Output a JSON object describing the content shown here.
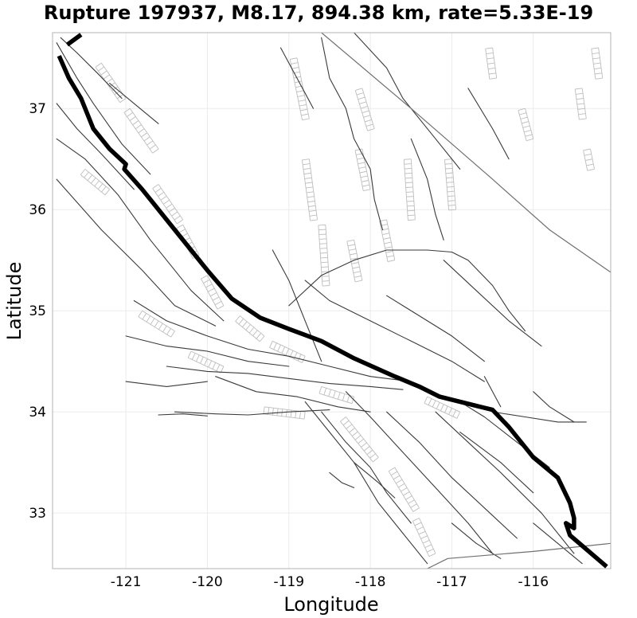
{
  "chart_data": {
    "type": "map-lines",
    "title": "Rupture 197937, M8.17, 894.38 km, rate=5.33E-19",
    "xlabel": "Longitude",
    "ylabel": "Latitude",
    "xlim": [
      -121.9,
      -115.05
    ],
    "ylim": [
      32.45,
      37.75
    ],
    "xticks": [
      {
        "value": -121,
        "label": "-121"
      },
      {
        "value": -120,
        "label": "-120"
      },
      {
        "value": -119,
        "label": "-119"
      },
      {
        "value": -118,
        "label": "-118"
      },
      {
        "value": -117,
        "label": "-117"
      },
      {
        "value": -116,
        "label": "-116"
      }
    ],
    "yticks": [
      {
        "value": 33,
        "label": "33"
      },
      {
        "value": 34,
        "label": "34"
      },
      {
        "value": 35,
        "label": "35"
      },
      {
        "value": 36,
        "label": "36"
      },
      {
        "value": 37,
        "label": "37"
      }
    ],
    "grid": true,
    "rupture_trace": [
      [
        -121.72,
        37.63
      ],
      [
        -121.55,
        37.73
      ],
      null,
      [
        -121.82,
        37.52
      ],
      [
        -121.7,
        37.3
      ],
      [
        -121.55,
        37.1
      ],
      [
        -121.4,
        36.8
      ],
      [
        -121.2,
        36.6
      ],
      [
        -121.0,
        36.45
      ],
      [
        -121.02,
        36.4
      ],
      [
        -120.8,
        36.2
      ],
      [
        -120.4,
        35.8
      ],
      [
        -120.0,
        35.4
      ],
      [
        -119.7,
        35.12
      ],
      [
        -119.35,
        34.93
      ],
      [
        -119.0,
        34.82
      ],
      [
        -118.6,
        34.7
      ],
      [
        -118.2,
        34.53
      ],
      [
        -117.7,
        34.35
      ],
      [
        -117.4,
        34.25
      ],
      [
        -117.15,
        34.15
      ],
      [
        -116.7,
        34.06
      ],
      [
        -116.5,
        34.02
      ],
      [
        -116.3,
        33.85
      ],
      [
        -116.0,
        33.55
      ],
      [
        -115.7,
        33.35
      ],
      [
        -115.55,
        33.1
      ],
      [
        -115.5,
        32.95
      ],
      [
        -115.5,
        32.85
      ],
      [
        -115.6,
        32.9
      ],
      [
        -115.55,
        32.78
      ],
      [
        -115.1,
        32.47
      ]
    ],
    "fault_traces": [
      [
        [
          -121.85,
          37.65
        ],
        [
          -121.6,
          37.3
        ],
        [
          -121.4,
          37.05
        ],
        [
          -121.05,
          36.65
        ],
        [
          -120.7,
          36.35
        ]
      ],
      [
        [
          -121.85,
          37.05
        ],
        [
          -121.6,
          36.8
        ],
        [
          -121.3,
          36.55
        ],
        [
          -120.9,
          36.2
        ]
      ],
      [
        [
          -121.85,
          36.7
        ],
        [
          -121.5,
          36.5
        ],
        [
          -121.1,
          36.15
        ],
        [
          -120.7,
          35.7
        ],
        [
          -120.2,
          35.2
        ],
        [
          -119.8,
          34.9
        ]
      ],
      [
        [
          -121.85,
          36.3
        ],
        [
          -121.3,
          35.8
        ],
        [
          -120.8,
          35.4
        ],
        [
          -120.4,
          35.05
        ],
        [
          -119.9,
          34.85
        ]
      ],
      [
        [
          -121.2,
          37.25
        ],
        [
          -120.9,
          37.05
        ],
        [
          -120.6,
          36.85
        ]
      ],
      [
        [
          -121.8,
          37.7
        ],
        [
          -121.6,
          37.55
        ],
        [
          -121.35,
          37.35
        ],
        [
          -121.05,
          37.1
        ]
      ],
      [
        [
          -120.9,
          35.1
        ],
        [
          -120.5,
          34.9
        ],
        [
          -120.0,
          34.75
        ],
        [
          -119.5,
          34.62
        ],
        [
          -119.0,
          34.55
        ],
        [
          -118.5,
          34.45
        ],
        [
          -118.0,
          34.35
        ],
        [
          -117.5,
          34.3
        ]
      ],
      [
        [
          -121.0,
          34.75
        ],
        [
          -120.5,
          34.65
        ],
        [
          -120.0,
          34.6
        ],
        [
          -119.5,
          34.5
        ],
        [
          -119.0,
          34.45
        ]
      ],
      [
        [
          -120.5,
          34.45
        ],
        [
          -120.0,
          34.4
        ],
        [
          -119.5,
          34.38
        ],
        [
          -119.0,
          34.33
        ],
        [
          -118.5,
          34.28
        ],
        [
          -118.0,
          34.25
        ],
        [
          -117.6,
          34.22
        ]
      ],
      [
        [
          -119.9,
          34.35
        ],
        [
          -119.4,
          34.2
        ],
        [
          -118.9,
          34.15
        ],
        [
          -118.4,
          34.05
        ],
        [
          -118.0,
          34.0
        ]
      ],
      [
        [
          -120.4,
          34.0
        ],
        [
          -119.9,
          33.98
        ],
        [
          -119.5,
          33.97
        ],
        [
          -119.0,
          34.0
        ],
        [
          -118.5,
          34.02
        ]
      ],
      [
        [
          -118.8,
          34.1
        ],
        [
          -118.5,
          33.8
        ],
        [
          -118.2,
          33.5
        ],
        [
          -117.9,
          33.1
        ],
        [
          -117.6,
          32.8
        ],
        [
          -117.3,
          32.5
        ]
      ],
      [
        [
          -118.6,
          34.0
        ],
        [
          -118.3,
          33.7
        ],
        [
          -118.0,
          33.45
        ],
        [
          -117.8,
          33.2
        ],
        [
          -117.5,
          32.9
        ]
      ],
      [
        [
          -118.3,
          34.2
        ],
        [
          -118.0,
          33.95
        ],
        [
          -117.6,
          33.6
        ],
        [
          -117.2,
          33.25
        ],
        [
          -116.8,
          32.9
        ],
        [
          -116.5,
          32.6
        ]
      ],
      [
        [
          -117.8,
          34.0
        ],
        [
          -117.4,
          33.7
        ],
        [
          -117.0,
          33.35
        ],
        [
          -116.6,
          33.05
        ],
        [
          -116.2,
          32.75
        ]
      ],
      [
        [
          -117.2,
          34.0
        ],
        [
          -116.8,
          33.7
        ],
        [
          -116.4,
          33.4
        ],
        [
          -115.9,
          33.0
        ],
        [
          -115.5,
          32.6
        ]
      ],
      [
        [
          -116.9,
          34.1
        ],
        [
          -116.6,
          33.95
        ],
        [
          -116.2,
          33.7
        ],
        [
          -115.8,
          33.45
        ]
      ],
      [
        [
          -118.8,
          35.3
        ],
        [
          -118.5,
          35.1
        ],
        [
          -118.0,
          34.9
        ],
        [
          -117.5,
          34.7
        ],
        [
          -117.0,
          34.5
        ],
        [
          -116.6,
          34.3
        ]
      ],
      [
        [
          -119.0,
          35.05
        ],
        [
          -118.6,
          35.35
        ],
        [
          -118.2,
          35.5
        ],
        [
          -117.8,
          35.6
        ],
        [
          -117.3,
          35.6
        ],
        [
          -117.0,
          35.58
        ],
        [
          -116.8,
          35.5
        ],
        [
          -116.5,
          35.25
        ],
        [
          -116.3,
          35.0
        ],
        [
          -116.1,
          34.8
        ]
      ],
      [
        [
          -117.1,
          35.5
        ],
        [
          -116.7,
          35.2
        ],
        [
          -116.3,
          34.9
        ],
        [
          -115.9,
          34.65
        ]
      ],
      [
        [
          -117.8,
          35.15
        ],
        [
          -117.4,
          34.95
        ],
        [
          -117.0,
          34.75
        ],
        [
          -116.6,
          34.5
        ]
      ],
      [
        [
          -118.6,
          37.7
        ],
        [
          -118.5,
          37.3
        ],
        [
          -118.3,
          37.0
        ],
        [
          -118.2,
          36.7
        ],
        [
          -118.0,
          36.4
        ],
        [
          -117.95,
          36.1
        ],
        [
          -117.85,
          35.8
        ]
      ],
      [
        [
          -119.1,
          37.6
        ],
        [
          -118.9,
          37.3
        ],
        [
          -118.7,
          37.0
        ]
      ],
      [
        [
          -118.2,
          37.75
        ],
        [
          -117.8,
          37.4
        ],
        [
          -117.6,
          37.1
        ],
        [
          -117.2,
          36.7
        ],
        [
          -116.9,
          36.4
        ]
      ],
      [
        [
          -117.5,
          36.7
        ],
        [
          -117.3,
          36.3
        ],
        [
          -117.2,
          35.95
        ],
        [
          -117.1,
          35.7
        ]
      ],
      [
        [
          -116.8,
          37.2
        ],
        [
          -116.5,
          36.8
        ],
        [
          -116.3,
          36.5
        ]
      ],
      [
        [
          -118.6,
          34.5
        ],
        [
          -118.8,
          34.9
        ],
        [
          -119.0,
          35.3
        ],
        [
          -119.2,
          35.6
        ]
      ],
      [
        [
          -121.0,
          34.3
        ],
        [
          -120.5,
          34.25
        ],
        [
          -120.0,
          34.3
        ]
      ],
      [
        [
          -116.9,
          33.8
        ],
        [
          -116.4,
          33.5
        ],
        [
          -116.0,
          33.2
        ]
      ],
      [
        [
          -116.5,
          34.0
        ],
        [
          -116.1,
          33.95
        ],
        [
          -115.7,
          33.9
        ],
        [
          -115.35,
          33.9
        ]
      ],
      [
        [
          -116.0,
          32.9
        ],
        [
          -115.7,
          32.7
        ],
        [
          -115.4,
          32.5
        ]
      ],
      [
        [
          -117.0,
          32.9
        ],
        [
          -116.7,
          32.7
        ],
        [
          -116.4,
          32.55
        ]
      ],
      [
        [
          -118.2,
          33.5
        ],
        [
          -117.9,
          33.3
        ],
        [
          -117.7,
          33.15
        ]
      ],
      [
        [
          -118.5,
          33.4
        ],
        [
          -118.35,
          33.3
        ],
        [
          -118.2,
          33.25
        ]
      ],
      [
        [
          -116.6,
          34.35
        ],
        [
          -116.4,
          34.05
        ]
      ],
      [
        [
          -116.0,
          34.2
        ],
        [
          -115.8,
          34.05
        ],
        [
          -115.5,
          33.9
        ]
      ],
      [
        [
          -120.6,
          33.97
        ],
        [
          -120.3,
          33.98
        ],
        [
          -120.0,
          33.96
        ]
      ]
    ],
    "fault_surfaces": [
      [
        [
          -121.3,
          37.45
        ],
        [
          -121.0,
          37.1
        ]
      ],
      [
        [
          -120.95,
          37.0
        ],
        [
          -120.6,
          36.6
        ]
      ],
      [
        [
          -120.6,
          36.25
        ],
        [
          -120.3,
          35.9
        ]
      ],
      [
        [
          -120.3,
          35.85
        ],
        [
          -120.1,
          35.55
        ]
      ],
      [
        [
          -120.0,
          35.35
        ],
        [
          -119.8,
          35.05
        ]
      ],
      [
        [
          -119.6,
          34.95
        ],
        [
          -119.3,
          34.75
        ]
      ],
      [
        [
          -119.2,
          34.7
        ],
        [
          -118.8,
          34.55
        ]
      ],
      [
        [
          -118.9,
          37.5
        ],
        [
          -118.75,
          36.9
        ]
      ],
      [
        [
          -118.75,
          36.5
        ],
        [
          -118.65,
          35.9
        ]
      ],
      [
        [
          -118.55,
          35.85
        ],
        [
          -118.5,
          35.25
        ]
      ],
      [
        [
          -118.1,
          37.2
        ],
        [
          -117.95,
          36.8
        ]
      ],
      [
        [
          -118.1,
          36.6
        ],
        [
          -118.0,
          36.2
        ]
      ],
      [
        [
          -117.5,
          36.5
        ],
        [
          -117.45,
          35.9
        ]
      ],
      [
        [
          -117.0,
          36.5
        ],
        [
          -116.95,
          36.0
        ]
      ],
      [
        [
          -118.2,
          35.7
        ],
        [
          -118.1,
          35.3
        ]
      ],
      [
        [
          -117.8,
          35.9
        ],
        [
          -117.7,
          35.5
        ]
      ],
      [
        [
          -119.3,
          34.05
        ],
        [
          -118.8,
          34.0
        ]
      ],
      [
        [
          -118.6,
          34.25
        ],
        [
          -118.2,
          34.15
        ]
      ],
      [
        [
          -118.3,
          33.95
        ],
        [
          -117.9,
          33.55
        ]
      ],
      [
        [
          -117.7,
          33.45
        ],
        [
          -117.4,
          33.05
        ]
      ],
      [
        [
          -117.4,
          32.95
        ],
        [
          -117.2,
          32.6
        ]
      ],
      [
        [
          -117.3,
          34.15
        ],
        [
          -116.9,
          34.0
        ]
      ],
      [
        [
          -116.5,
          37.6
        ],
        [
          -116.45,
          37.3
        ]
      ],
      [
        [
          -116.1,
          37.0
        ],
        [
          -116.0,
          36.7
        ]
      ],
      [
        [
          -115.4,
          37.2
        ],
        [
          -115.35,
          36.9
        ]
      ],
      [
        [
          -115.3,
          36.6
        ],
        [
          -115.25,
          36.4
        ]
      ],
      [
        [
          -115.2,
          37.6
        ],
        [
          -115.15,
          37.3
        ]
      ],
      [
        [
          -121.5,
          36.4
        ],
        [
          -121.2,
          36.2
        ]
      ],
      [
        [
          -120.8,
          35.0
        ],
        [
          -120.4,
          34.8
        ]
      ],
      [
        [
          -120.2,
          34.6
        ],
        [
          -119.8,
          34.45
        ]
      ]
    ],
    "boundaries": [
      [
        [
          -118.6,
          37.75
        ],
        [
          -117.5,
          37.0
        ],
        [
          -116.5,
          36.3
        ],
        [
          -115.8,
          35.8
        ],
        [
          -115.05,
          35.38
        ]
      ],
      [
        [
          -117.05,
          32.55
        ],
        [
          -116.0,
          32.62
        ],
        [
          -115.05,
          32.7
        ]
      ],
      [
        [
          -117.05,
          32.55
        ],
        [
          -117.3,
          32.45
        ]
      ]
    ]
  }
}
